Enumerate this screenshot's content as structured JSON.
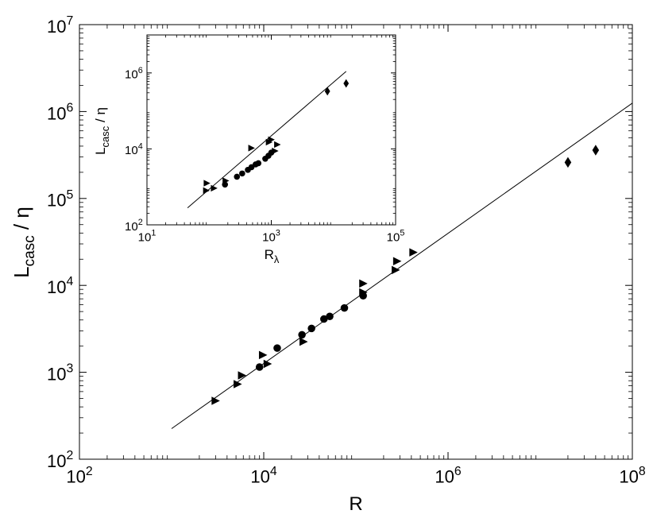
{
  "chart_data": [
    {
      "type": "scatter",
      "xscale": "log",
      "yscale": "log",
      "xlim": [
        100,
        100000000
      ],
      "ylim": [
        100,
        10000000
      ],
      "xlabel": "R",
      "ylabel_main": "L",
      "ylabel_sub": "casc",
      "ylabel_tail": " / η",
      "xticks": [
        {
          "value": 100,
          "base": "10",
          "exp": "2"
        },
        {
          "value": 10000,
          "base": "10",
          "exp": "4"
        },
        {
          "value": 1000000,
          "base": "10",
          "exp": "6"
        },
        {
          "value": 100000000,
          "base": "10",
          "exp": "8"
        }
      ],
      "yticks": [
        {
          "value": 100,
          "base": "10",
          "exp": "2"
        },
        {
          "value": 1000,
          "base": "10",
          "exp": "3"
        },
        {
          "value": 10000,
          "base": "10",
          "exp": "4"
        },
        {
          "value": 100000,
          "base": "10",
          "exp": "5"
        },
        {
          "value": 1000000,
          "base": "10",
          "exp": "6"
        },
        {
          "value": 10000000,
          "base": "10",
          "exp": "7"
        }
      ],
      "fit_line": {
        "x": [
          1000,
          100000000
        ],
        "y": [
          225,
          1250000
        ]
      },
      "series": [
        {
          "marker": "circle",
          "x": [
            9000,
            14000,
            26000,
            33000,
            45000,
            52000,
            75000,
            120000
          ],
          "y": [
            1150,
            1900,
            2700,
            3200,
            4100,
            4400,
            5500,
            7600
          ]
        },
        {
          "marker": "triangle-right",
          "x": [
            3000,
            5200,
            5800,
            9800,
            11000,
            27000,
            120000,
            120000,
            270000,
            280000,
            420000
          ],
          "y": [
            470,
            730,
            920,
            1580,
            1250,
            2250,
            8300,
            10500,
            15000,
            19000,
            24000
          ]
        },
        {
          "marker": "diamond",
          "x": [
            20000000,
            40000000
          ],
          "y": [
            260000,
            360000
          ]
        }
      ]
    },
    {
      "type": "scatter",
      "inset": true,
      "xscale": "log",
      "yscale": "log",
      "xlim": [
        10,
        100000
      ],
      "ylim": [
        100,
        10000000
      ],
      "xlabel_main": "R",
      "xlabel_sub": "λ",
      "ylabel_main": "L",
      "ylabel_sub": "casc",
      "ylabel_tail": " / η",
      "xticks": [
        {
          "value": 10,
          "base": "10",
          "exp": "1"
        },
        {
          "value": 1000,
          "base": "10",
          "exp": "3"
        },
        {
          "value": 100000,
          "base": "10",
          "exp": "5"
        }
      ],
      "yticks": [
        {
          "value": 100,
          "base": "10",
          "exp": "2"
        },
        {
          "value": 10000,
          "base": "10",
          "exp": "4"
        },
        {
          "value": 1000000,
          "base": "10",
          "exp": "6"
        }
      ],
      "fit_line": {
        "x": [
          45,
          16000
        ],
        "y": [
          280,
          1100000
        ]
      },
      "series": [
        {
          "marker": "circle",
          "x": [
            180,
            280,
            340,
            420,
            480,
            560,
            620,
            800,
            900,
            1000
          ],
          "y": [
            1150,
            1850,
            2250,
            2800,
            3300,
            3900,
            4200,
            5500,
            6600,
            8000
          ]
        },
        {
          "marker": "triangle-right",
          "x": [
            90,
            92,
            120,
            185,
            480,
            920,
            1000,
            1150,
            1250
          ],
          "y": [
            800,
            1250,
            920,
            1450,
            10500,
            15000,
            17500,
            8800,
            13000
          ]
        },
        {
          "marker": "diamond",
          "x": [
            8000,
            16000
          ],
          "y": [
            330000,
            530000
          ]
        }
      ]
    }
  ]
}
